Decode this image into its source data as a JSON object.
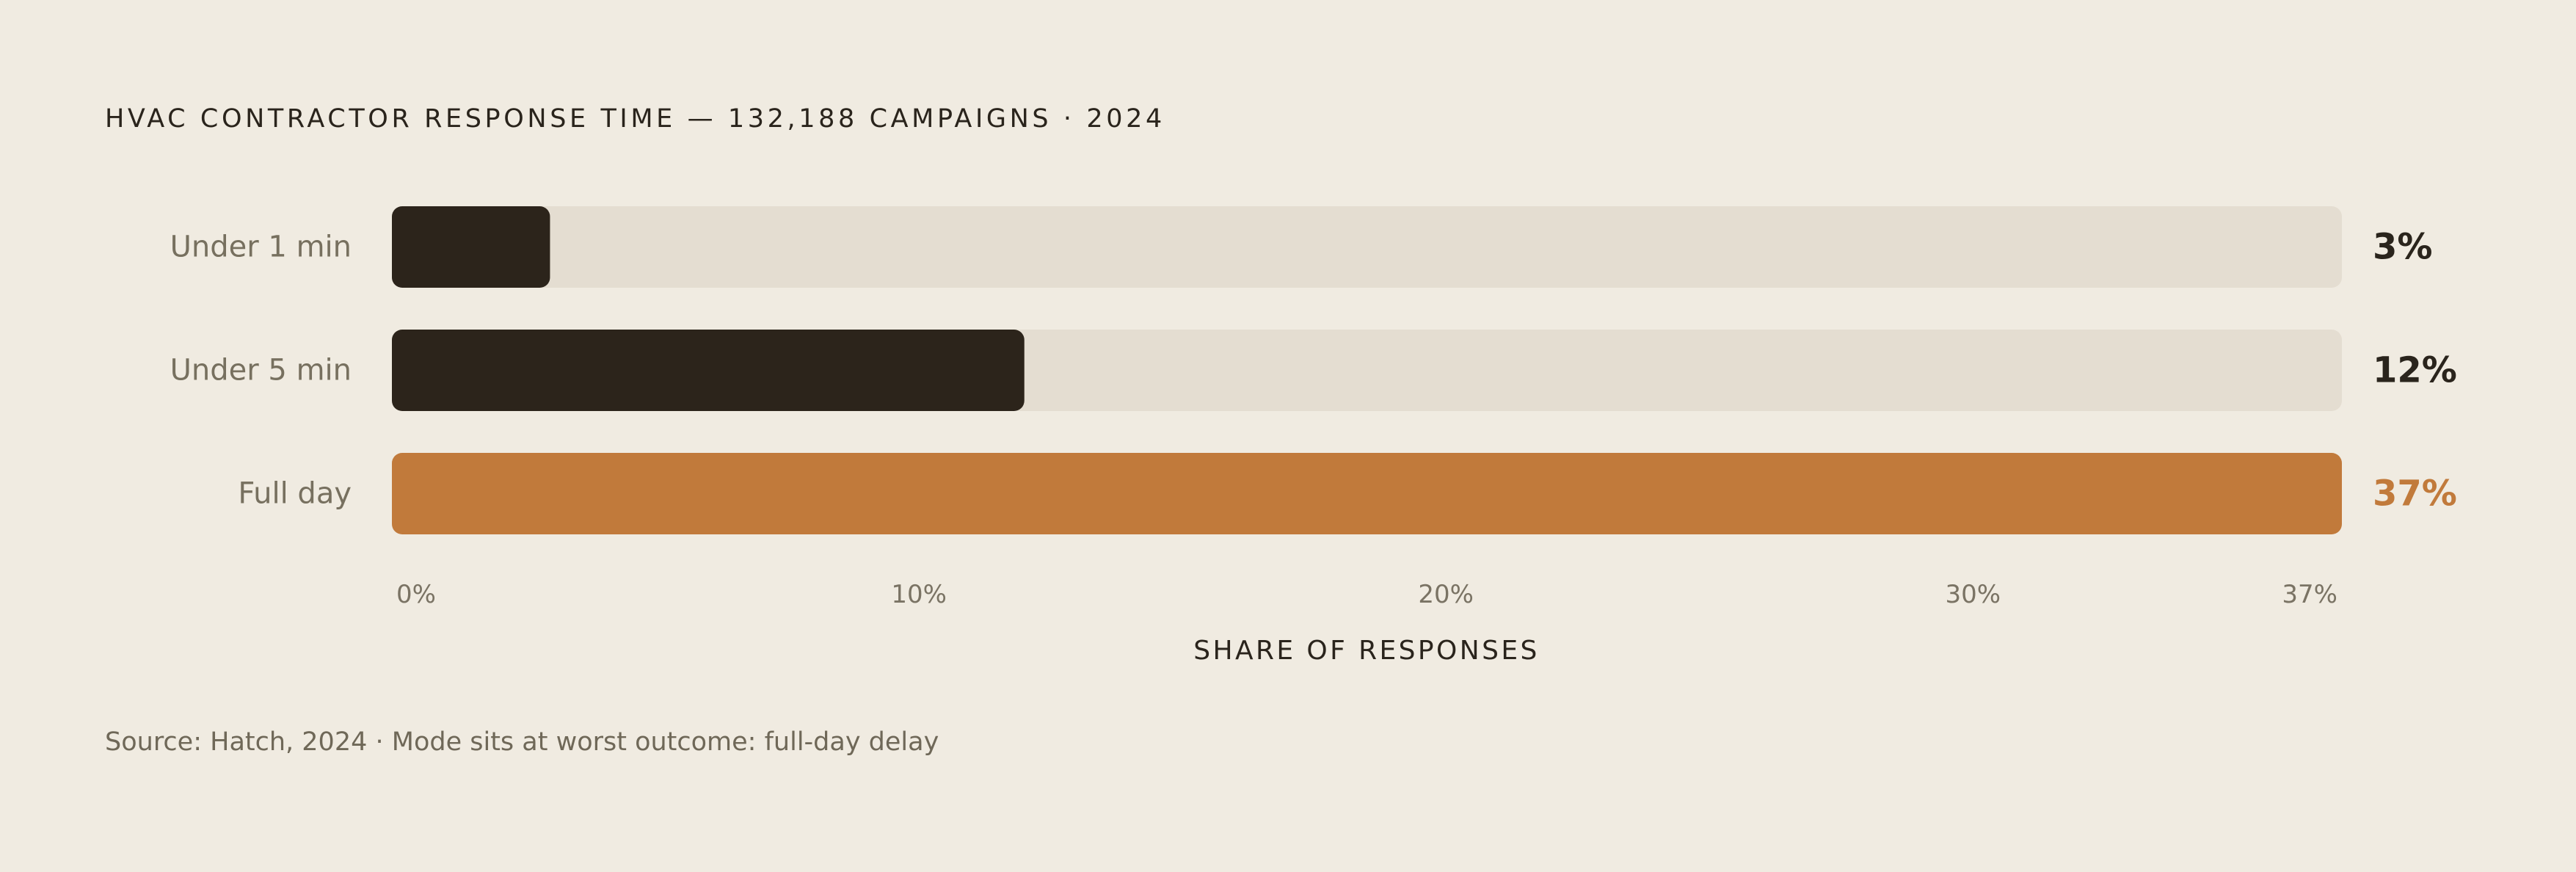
{
  "title": "HVAC CONTRACTOR RESPONSE TIME — 132,188 CAMPAIGNS · 2024",
  "source": "Source: Hatch, 2024 · Mode sits at worst outcome: full-day delay",
  "colors": {
    "background": "#f0ebe1",
    "track": "#e4ddd1",
    "bar": "#2c241b",
    "highlight": "#c17a3b",
    "value_text": "#2a241c"
  },
  "chart_data": {
    "type": "bar",
    "orientation": "horizontal",
    "categories": [
      "Under 1 min",
      "Under 5 min",
      "Full day"
    ],
    "values": [
      3,
      12,
      37
    ],
    "value_labels": [
      "3%",
      "12%",
      "37%"
    ],
    "highlight_index": 2,
    "xlim": [
      0,
      37
    ],
    "x_ticks": [
      0,
      10,
      20,
      30,
      37
    ],
    "x_tick_labels": [
      "0%",
      "10%",
      "20%",
      "30%",
      "37%"
    ],
    "xlabel": "SHARE OF RESPONSES",
    "grid": false,
    "legend": false
  }
}
